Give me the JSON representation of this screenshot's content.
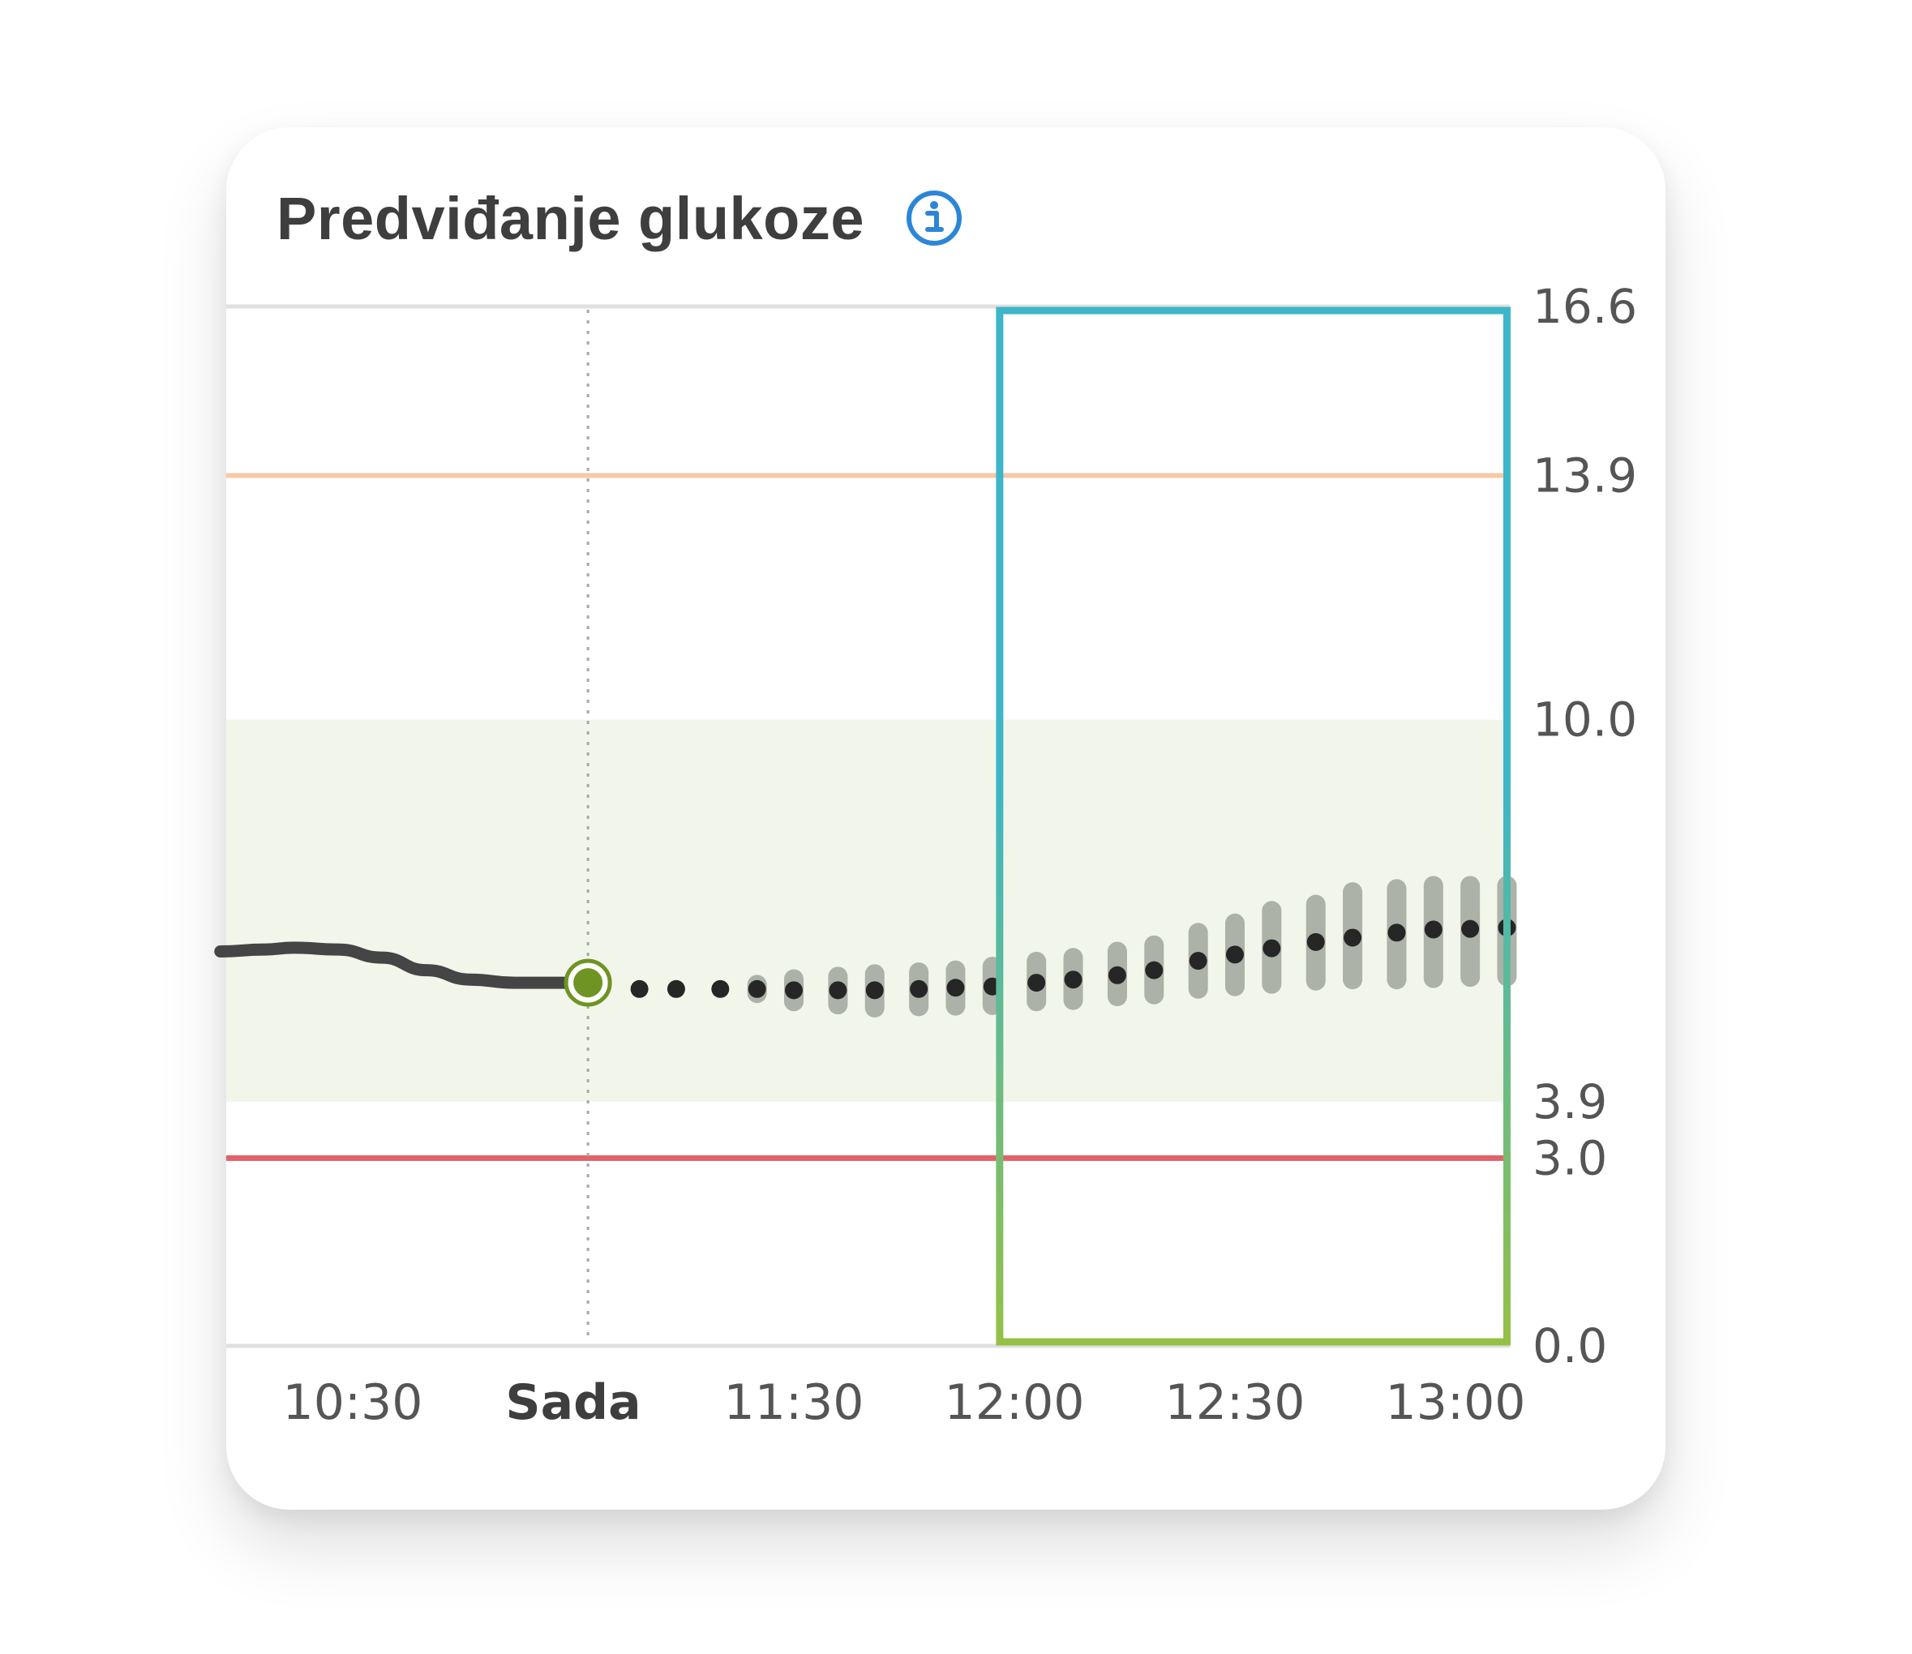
{
  "card": {
    "title": "Predviđanje glukoze",
    "info_icon": "info-circle-icon"
  },
  "colors": {
    "target_band": "#f2f6ea",
    "high_line": "#f8c9a4",
    "low_line": "#e0636b",
    "history_line": "#454545",
    "now_marker": "#6f9424",
    "prediction_dot": "#262626",
    "prediction_band": "#a5aba0",
    "info_icon": "#2c86d8",
    "highlight_top": "#3cb6c8",
    "highlight_bottom": "#95c048"
  },
  "chart_data": {
    "type": "line",
    "ylim": [
      0.0,
      16.6
    ],
    "y_ticks": [
      {
        "label": "16.6",
        "value": 16.6
      },
      {
        "label": "13.9",
        "value": 13.9
      },
      {
        "label": "10.0",
        "value": 10.0
      },
      {
        "label": "3.9",
        "value": 3.9
      },
      {
        "label": "3.0",
        "value": 3.0
      },
      {
        "label": "0.0",
        "value": 0.0
      }
    ],
    "x_ticks": [
      {
        "label": "10:30",
        "time": "10:30",
        "now": false
      },
      {
        "label": "Sada",
        "time": "11:00",
        "now": true
      },
      {
        "label": "11:30",
        "time": "11:30",
        "now": false
      },
      {
        "label": "12:00",
        "time": "12:00",
        "now": false
      },
      {
        "label": "12:30",
        "time": "12:30",
        "now": false
      },
      {
        "label": "13:00",
        "time": "13:00",
        "now": false
      }
    ],
    "xlim": [
      "10:12",
      "13:07"
    ],
    "target_range": [
      3.9,
      10.0
    ],
    "high_threshold": 13.9,
    "low_threshold": 3.0,
    "now_time": "11:02",
    "now_value": 5.8,
    "history": [
      {
        "time": "10:12",
        "value": 6.3
      },
      {
        "time": "10:18",
        "value": 6.33
      },
      {
        "time": "10:22",
        "value": 6.36
      },
      {
        "time": "10:28",
        "value": 6.33
      },
      {
        "time": "10:34",
        "value": 6.2
      },
      {
        "time": "10:40",
        "value": 6.0
      },
      {
        "time": "10:46",
        "value": 5.85
      },
      {
        "time": "10:52",
        "value": 5.8
      },
      {
        "time": "10:58",
        "value": 5.8
      },
      {
        "time": "11:02",
        "value": 5.8
      }
    ],
    "prediction": [
      {
        "time": "11:09",
        "value": 5.7,
        "low": 5.7,
        "high": 5.7
      },
      {
        "time": "11:14",
        "value": 5.7,
        "low": 5.7,
        "high": 5.7
      },
      {
        "time": "11:20",
        "value": 5.7,
        "low": 5.7,
        "high": 5.7
      },
      {
        "time": "11:25",
        "value": 5.7,
        "low": 5.63,
        "high": 5.77
      },
      {
        "time": "11:30",
        "value": 5.68,
        "low": 5.5,
        "high": 5.86
      },
      {
        "time": "11:36",
        "value": 5.68,
        "low": 5.45,
        "high": 5.9
      },
      {
        "time": "11:41",
        "value": 5.68,
        "low": 5.4,
        "high": 5.94
      },
      {
        "time": "11:47",
        "value": 5.7,
        "low": 5.42,
        "high": 5.97
      },
      {
        "time": "11:52",
        "value": 5.72,
        "low": 5.43,
        "high": 6.0
      },
      {
        "time": "11:57",
        "value": 5.74,
        "low": 5.44,
        "high": 6.06
      },
      {
        "time": "12:03",
        "value": 5.8,
        "low": 5.5,
        "high": 6.14
      },
      {
        "time": "12:08",
        "value": 5.85,
        "low": 5.52,
        "high": 6.2
      },
      {
        "time": "12:14",
        "value": 5.92,
        "low": 5.58,
        "high": 6.3
      },
      {
        "time": "12:19",
        "value": 6.0,
        "low": 5.61,
        "high": 6.4
      },
      {
        "time": "12:25",
        "value": 6.15,
        "low": 5.7,
        "high": 6.6
      },
      {
        "time": "12:30",
        "value": 6.25,
        "low": 5.74,
        "high": 6.75
      },
      {
        "time": "12:35",
        "value": 6.35,
        "low": 5.78,
        "high": 6.95
      },
      {
        "time": "12:41",
        "value": 6.45,
        "low": 5.83,
        "high": 7.05
      },
      {
        "time": "12:46",
        "value": 6.52,
        "low": 5.85,
        "high": 7.25
      },
      {
        "time": "12:52",
        "value": 6.6,
        "low": 5.85,
        "high": 7.3
      },
      {
        "time": "12:57",
        "value": 6.65,
        "low": 5.87,
        "high": 7.35
      },
      {
        "time": "13:02",
        "value": 6.66,
        "low": 5.89,
        "high": 7.35
      },
      {
        "time": "13:07",
        "value": 6.68,
        "low": 5.9,
        "high": 7.35
      }
    ],
    "highlight_window": [
      "11:58",
      "13:07"
    ],
    "grid": false
  }
}
